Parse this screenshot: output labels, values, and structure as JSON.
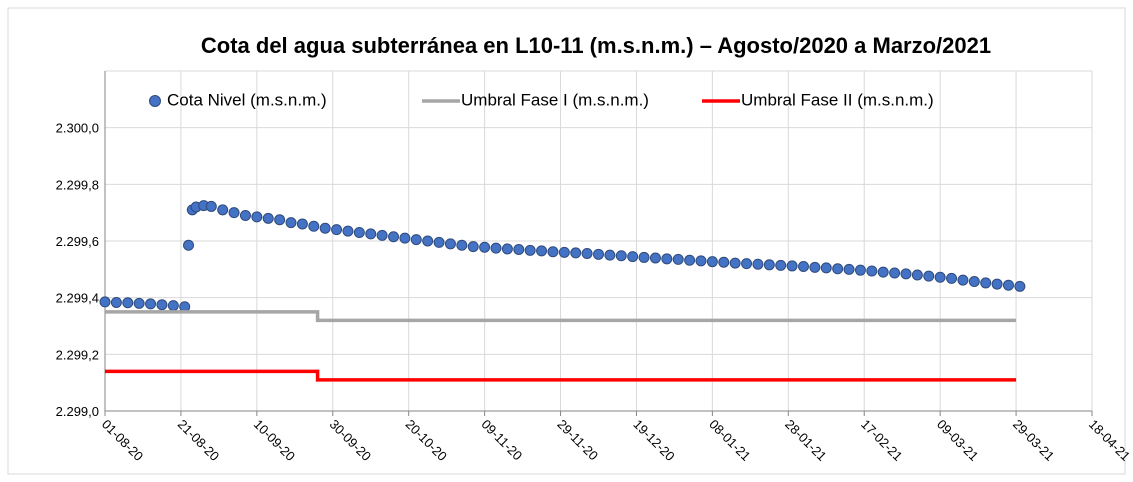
{
  "chart_data": {
    "type": "line",
    "title": "Cota del agua subterránea en L10-11 (m.s.n.m.) – Agosto/2020 a Marzo/2021",
    "legend": "top",
    "grid": true,
    "xlim": [
      "2020-08-01",
      "2021-04-18"
    ],
    "xticks": [
      {
        "value": "2020-08-01",
        "label": "01-08-20"
      },
      {
        "value": "2020-08-21",
        "label": "21-08-20"
      },
      {
        "value": "2020-09-10",
        "label": "10-09-20"
      },
      {
        "value": "2020-09-30",
        "label": "30-09-20"
      },
      {
        "value": "2020-10-20",
        "label": "20-10-20"
      },
      {
        "value": "2020-11-09",
        "label": "09-11-20"
      },
      {
        "value": "2020-11-29",
        "label": "29-11-20"
      },
      {
        "value": "2020-12-19",
        "label": "19-12-20"
      },
      {
        "value": "2021-01-08",
        "label": "08-01-21"
      },
      {
        "value": "2021-01-28",
        "label": "28-01-21"
      },
      {
        "value": "2021-02-17",
        "label": "17-02-21"
      },
      {
        "value": "2021-03-09",
        "label": "09-03-21"
      },
      {
        "value": "2021-03-29",
        "label": "29-03-21"
      },
      {
        "value": "2021-04-18",
        "label": "18-04-21"
      }
    ],
    "ylim": [
      2299.0,
      2300.2
    ],
    "yticks": [
      {
        "value": 2299.0,
        "label": "2.299,0"
      },
      {
        "value": 2299.2,
        "label": "2.299,2"
      },
      {
        "value": 2299.4,
        "label": "2.299,4"
      },
      {
        "value": 2299.6,
        "label": "2.299,6"
      },
      {
        "value": 2299.8,
        "label": "2.299,8"
      },
      {
        "value": 2300.0,
        "label": "2.300,0"
      }
    ],
    "series": [
      {
        "name": "Cota Nivel (m.s.n.m.)",
        "color": "#4472c4",
        "marker": "circle",
        "x": [
          "2020-08-01",
          "2020-08-04",
          "2020-08-07",
          "2020-08-10",
          "2020-08-13",
          "2020-08-16",
          "2020-08-19",
          "2020-08-22",
          "2020-08-23",
          "2020-08-24",
          "2020-08-25",
          "2020-08-27",
          "2020-08-29",
          "2020-09-01",
          "2020-09-04",
          "2020-09-07",
          "2020-09-10",
          "2020-09-13",
          "2020-09-16",
          "2020-09-19",
          "2020-09-22",
          "2020-09-25",
          "2020-09-28",
          "2020-10-01",
          "2020-10-04",
          "2020-10-07",
          "2020-10-10",
          "2020-10-13",
          "2020-10-16",
          "2020-10-19",
          "2020-10-22",
          "2020-10-25",
          "2020-10-28",
          "2020-10-31",
          "2020-11-03",
          "2020-11-06",
          "2020-11-09",
          "2020-11-12",
          "2020-11-15",
          "2020-11-18",
          "2020-11-21",
          "2020-11-24",
          "2020-11-27",
          "2020-11-30",
          "2020-12-03",
          "2020-12-06",
          "2020-12-09",
          "2020-12-12",
          "2020-12-15",
          "2020-12-18",
          "2020-12-21",
          "2020-12-24",
          "2020-12-27",
          "2020-12-30",
          "2021-01-02",
          "2021-01-05",
          "2021-01-08",
          "2021-01-11",
          "2021-01-14",
          "2021-01-17",
          "2021-01-20",
          "2021-01-23",
          "2021-01-26",
          "2021-01-29",
          "2021-02-01",
          "2021-02-04",
          "2021-02-07",
          "2021-02-10",
          "2021-02-13",
          "2021-02-16",
          "2021-02-19",
          "2021-02-22",
          "2021-02-25",
          "2021-02-28",
          "2021-03-03",
          "2021-03-06",
          "2021-03-09",
          "2021-03-12",
          "2021-03-15",
          "2021-03-18",
          "2021-03-21",
          "2021-03-24",
          "2021-03-27",
          "2021-03-30"
        ],
        "values": [
          2299.385,
          2299.383,
          2299.382,
          2299.38,
          2299.378,
          2299.375,
          2299.372,
          2299.368,
          2299.585,
          2299.71,
          2299.72,
          2299.725,
          2299.722,
          2299.71,
          2299.7,
          2299.69,
          2299.685,
          2299.68,
          2299.675,
          2299.665,
          2299.66,
          2299.652,
          2299.645,
          2299.64,
          2299.635,
          2299.63,
          2299.625,
          2299.62,
          2299.615,
          2299.61,
          2299.605,
          2299.6,
          2299.595,
          2299.59,
          2299.585,
          2299.58,
          2299.578,
          2299.575,
          2299.572,
          2299.57,
          2299.567,
          2299.565,
          2299.562,
          2299.56,
          2299.558,
          2299.556,
          2299.553,
          2299.55,
          2299.548,
          2299.545,
          2299.542,
          2299.54,
          2299.537,
          2299.535,
          2299.532,
          2299.53,
          2299.527,
          2299.525,
          2299.522,
          2299.52,
          2299.518,
          2299.516,
          2299.514,
          2299.512,
          2299.51,
          2299.507,
          2299.505,
          2299.502,
          2299.5,
          2299.497,
          2299.494,
          2299.49,
          2299.487,
          2299.484,
          2299.48,
          2299.476,
          2299.472,
          2299.468,
          2299.462,
          2299.457,
          2299.452,
          2299.448,
          2299.444,
          2299.44
        ]
      },
      {
        "name": "Umbral Fase I (m.s.n.m.)",
        "color": "#a6a6a6",
        "marker": "none",
        "x": [
          "2020-08-01",
          "2020-09-26",
          "2020-09-26",
          "2021-03-29"
        ],
        "values": [
          2299.35,
          2299.35,
          2299.32,
          2299.32
        ]
      },
      {
        "name": "Umbral Fase II (m.s.n.m.)",
        "color": "#ff0000",
        "marker": "none",
        "x": [
          "2020-08-01",
          "2020-09-26",
          "2020-09-26",
          "2021-03-29"
        ],
        "values": [
          2299.14,
          2299.14,
          2299.11,
          2299.11
        ]
      }
    ]
  }
}
